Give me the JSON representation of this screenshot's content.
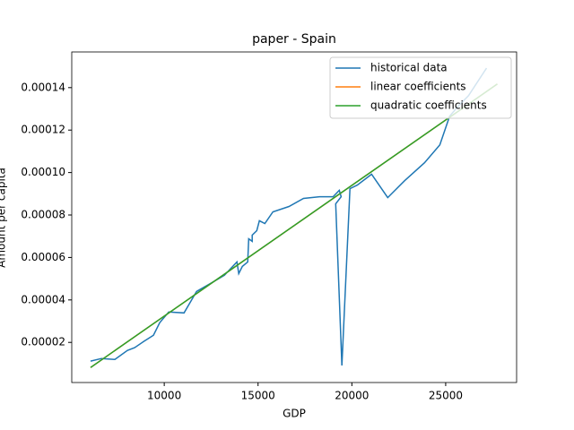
{
  "chart_data": {
    "type": "line",
    "title": "paper - Spain",
    "x_label": "GDP",
    "y_label": "Amount per capita",
    "xlim": [
      5070,
      28780
    ],
    "ylim": [
      1.1e-06,
      0.0001568
    ],
    "xticks": [
      10000,
      15000,
      20000,
      25000
    ],
    "yticks": [
      2e-05,
      4e-05,
      6e-05,
      8e-05,
      {
        "value": 0.0001,
        "label": "0.00010"
      },
      0.00012,
      0.00014
    ],
    "legend": "upper right",
    "series": [
      {
        "name": "historical data",
        "color": "#1f77b4",
        "x": [
          6076,
          6650,
          7368,
          8038,
          8420,
          8900,
          9426,
          9761,
          10240,
          11053,
          11723,
          12393,
          13206,
          13876,
          13970,
          14160,
          14450,
          14500,
          14690,
          14690,
          14930,
          15070,
          15360,
          15790,
          16650,
          17420,
          18280,
          19000,
          19330,
          19430,
          19140,
          19470,
          19900,
          20290,
          21050,
          21910,
          22820,
          23870,
          24690,
          25210,
          25650,
          26220,
          27180
        ],
        "values": [
          1.12e-05,
          1.24e-05,
          1.2e-05,
          1.62e-05,
          1.75e-05,
          2.04e-05,
          2.34e-05,
          2.93e-05,
          3.43e-05,
          3.39e-05,
          4.4e-05,
          4.74e-05,
          5.16e-05,
          5.79e-05,
          5.24e-05,
          5.58e-05,
          5.79e-05,
          6.88e-05,
          6.76e-05,
          7.05e-05,
          7.26e-05,
          7.73e-05,
          7.6e-05,
          8.15e-05,
          8.4e-05,
          8.78e-05,
          8.86e-05,
          8.86e-05,
          9.16e-05,
          8.86e-05,
          8.53e-05,
          9.1e-06,
          9.24e-05,
          9.41e-05,
          9.92e-05,
          8.82e-05,
          9.62e-05,
          0.0001046,
          0.000113,
          0.0001265,
          0.0001311,
          0.0001362,
          0.0001492
        ]
      },
      {
        "name": "linear coefficients",
        "color": "#ff7f0e",
        "x": [
          6076,
          27750
        ],
        "values": [
          8.2e-06,
          0.0001417
        ]
      },
      {
        "name": "quadratic coefficients",
        "color": "#2ca02c",
        "x": [
          6076,
          16900,
          27750
        ],
        "values": [
          8.2e-06,
          7.49e-05,
          0.0001417
        ]
      }
    ]
  }
}
